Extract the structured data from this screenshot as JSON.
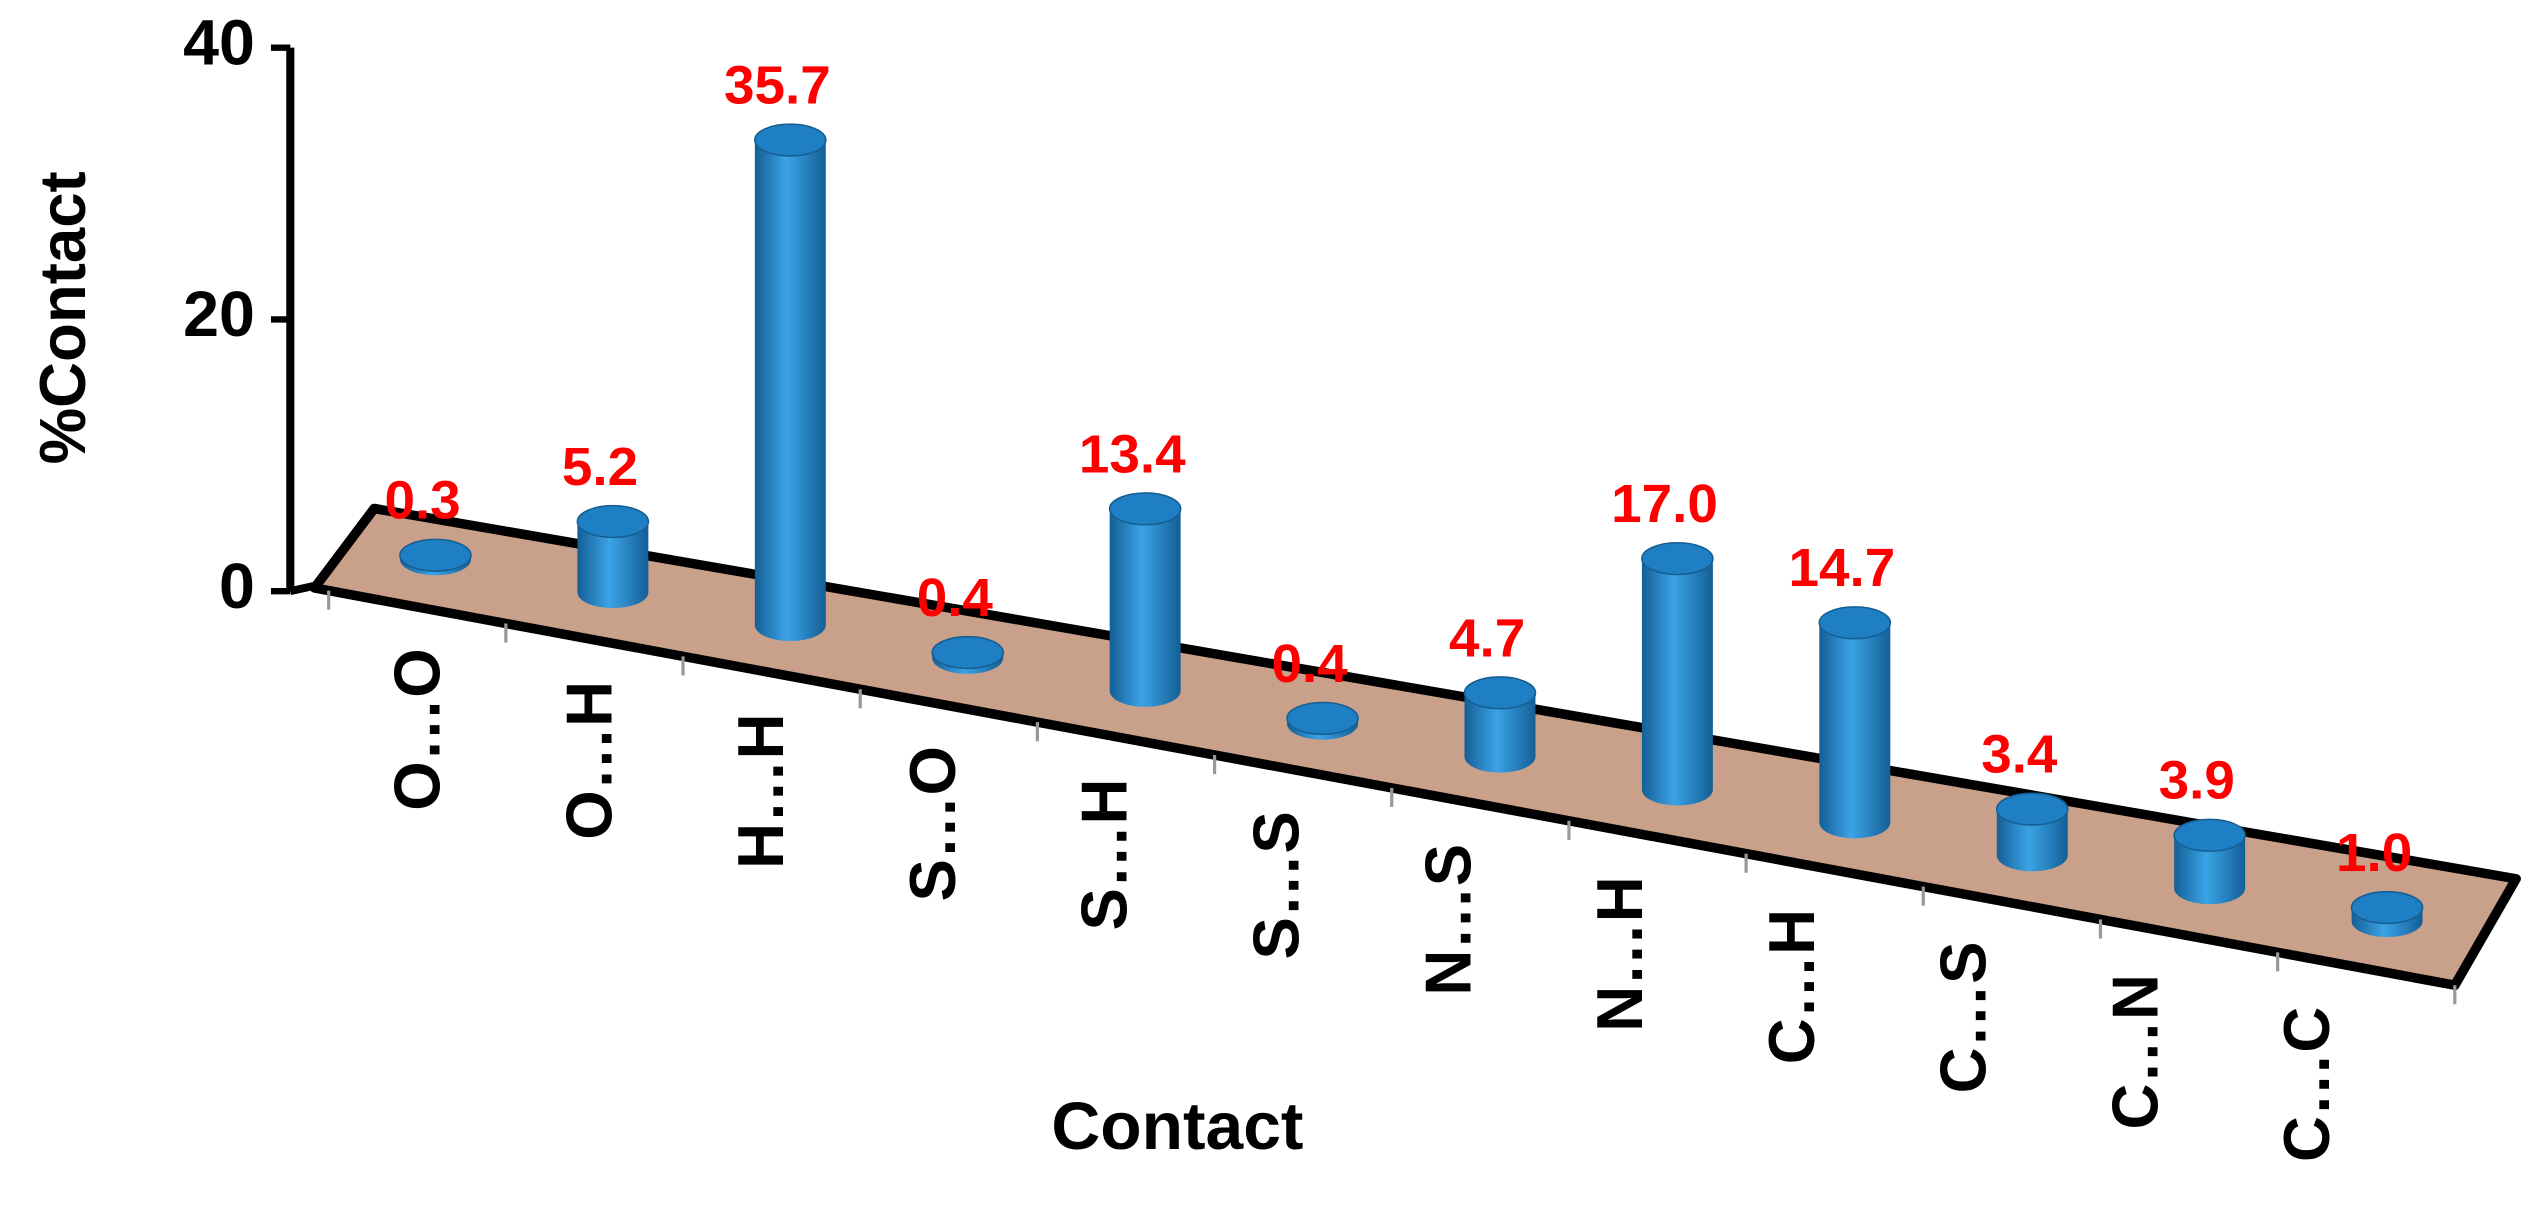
{
  "chart_data": {
    "type": "bar3d",
    "x_label": "Contact",
    "y_label": "%Contact",
    "categories": [
      "O…O",
      "O…H",
      "H…H",
      "S…O",
      "S…H",
      "S…S",
      "N…S",
      "N…H",
      "C…H",
      "C…S",
      "C…N",
      "C…C"
    ],
    "values": [
      0.3,
      5.2,
      35.7,
      0.4,
      13.4,
      0.4,
      4.7,
      17.0,
      14.7,
      3.4,
      3.9,
      1.0
    ],
    "value_labels": [
      "0.3",
      "5.2",
      "35.7",
      "0.4",
      "13.4",
      "0.4",
      "4.7",
      "17.0",
      "14.7",
      "3.4",
      "3.9",
      "1.0"
    ],
    "color": "#1f7fc4",
    "label_color": "#ff0000",
    "floor_color": "#c9a08a",
    "ylim": [
      0,
      40
    ],
    "yticks": [
      0,
      20,
      40
    ],
    "grid": false
  }
}
